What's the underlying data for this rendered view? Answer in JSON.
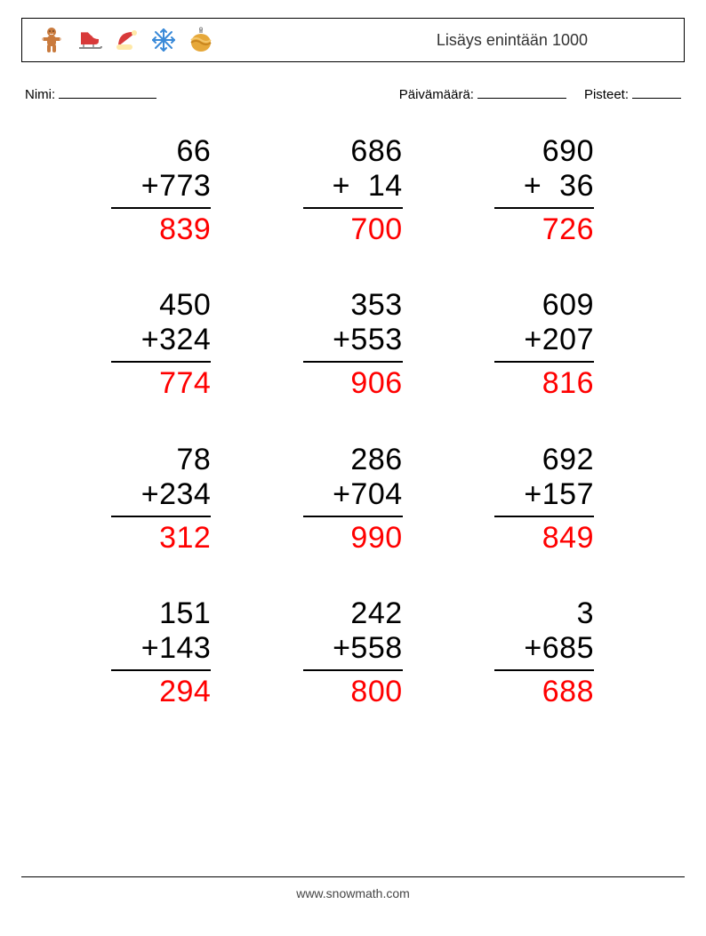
{
  "header": {
    "title": "Lisäys enintään 1000",
    "icons": [
      "gingerbread",
      "skate",
      "santa-hat",
      "snowflake",
      "ornament"
    ]
  },
  "meta": {
    "name_label": "Nimi:",
    "date_label": "Päivämäärä:",
    "score_label": "Pisteet:",
    "name_line_width": 110,
    "date_line_width": 100,
    "score_line_width": 55
  },
  "worksheet": {
    "problem_fontsize": 34,
    "answer_color": "#ff0000",
    "rule_color": "#000000",
    "columns": 3,
    "problems": [
      {
        "a": "66",
        "op": "+",
        "b": "773",
        "ans": "839"
      },
      {
        "a": "686",
        "op": "+",
        "b": "14",
        "ans": "700",
        "pad": true
      },
      {
        "a": "690",
        "op": "+",
        "b": "36",
        "ans": "726",
        "pad": true
      },
      {
        "a": "450",
        "op": "+",
        "b": "324",
        "ans": "774"
      },
      {
        "a": "353",
        "op": "+",
        "b": "553",
        "ans": "906"
      },
      {
        "a": "609",
        "op": "+",
        "b": "207",
        "ans": "816"
      },
      {
        "a": "78",
        "op": "+",
        "b": "234",
        "ans": "312"
      },
      {
        "a": "286",
        "op": "+",
        "b": "704",
        "ans": "990"
      },
      {
        "a": "692",
        "op": "+",
        "b": "157",
        "ans": "849"
      },
      {
        "a": "151",
        "op": "+",
        "b": "143",
        "ans": "294"
      },
      {
        "a": "242",
        "op": "+",
        "b": "558",
        "ans": "800"
      },
      {
        "a": "3",
        "op": "+",
        "b": "685",
        "ans": "688"
      }
    ]
  },
  "footer": {
    "url": "www.snowmath.com"
  },
  "colors": {
    "text": "#000000",
    "answer": "#ff0000",
    "gingerbread_body": "#c97a3d",
    "gingerbread_trim": "#ffffff",
    "skate_boot": "#d83a3a",
    "skate_blade": "#888888",
    "hat_red": "#d83a3a",
    "hat_trim": "#ffe9a8",
    "snowflake": "#3a8ad8",
    "ornament_gold": "#e6a83a",
    "ornament_cap": "#b0b0b0"
  }
}
